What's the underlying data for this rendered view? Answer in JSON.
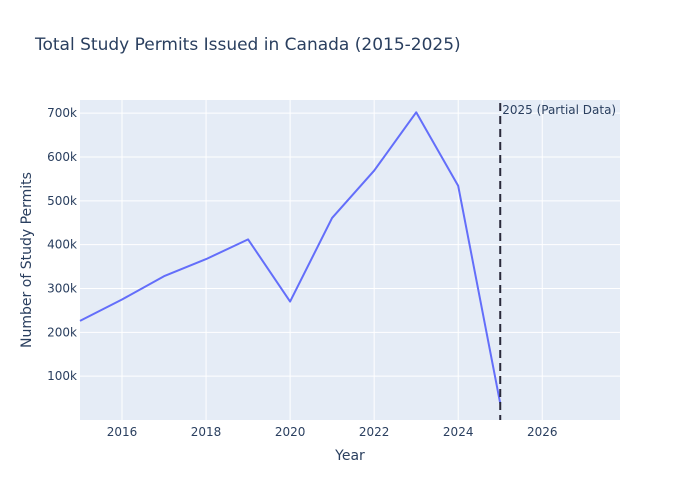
{
  "chart_data": {
    "type": "line",
    "title": "Total Study Permits Issued in Canada (2015-2025)",
    "xlabel": "Year",
    "ylabel": "Number of Study Permits",
    "xlim": [
      2015,
      2027.85
    ],
    "ylim": [
      0,
      730000
    ],
    "x_ticks": [
      2016,
      2018,
      2020,
      2022,
      2024,
      2026
    ],
    "x_tick_labels": [
      "2016",
      "2018",
      "2020",
      "2022",
      "2024",
      "2026"
    ],
    "y_ticks": [
      100000,
      200000,
      300000,
      400000,
      500000,
      600000,
      700000
    ],
    "y_tick_labels": [
      "100k",
      "200k",
      "300k",
      "400k",
      "500k",
      "600k",
      "700k"
    ],
    "grid": true,
    "legend": "none",
    "series": [
      {
        "color": "#636efa",
        "x": [
          2015,
          2016,
          2017,
          2018,
          2019,
          2020,
          2021,
          2022,
          2023,
          2024,
          2025
        ],
        "values": [
          226000,
          275000,
          328000,
          367000,
          412000,
          270000,
          461000,
          569000,
          702000,
          534000,
          38000
        ]
      }
    ],
    "annotations": [
      {
        "type": "vline",
        "x": 2025,
        "style": "dashed",
        "color": "#2a2a3a",
        "text": "2025 (Partial Data)"
      }
    ]
  }
}
